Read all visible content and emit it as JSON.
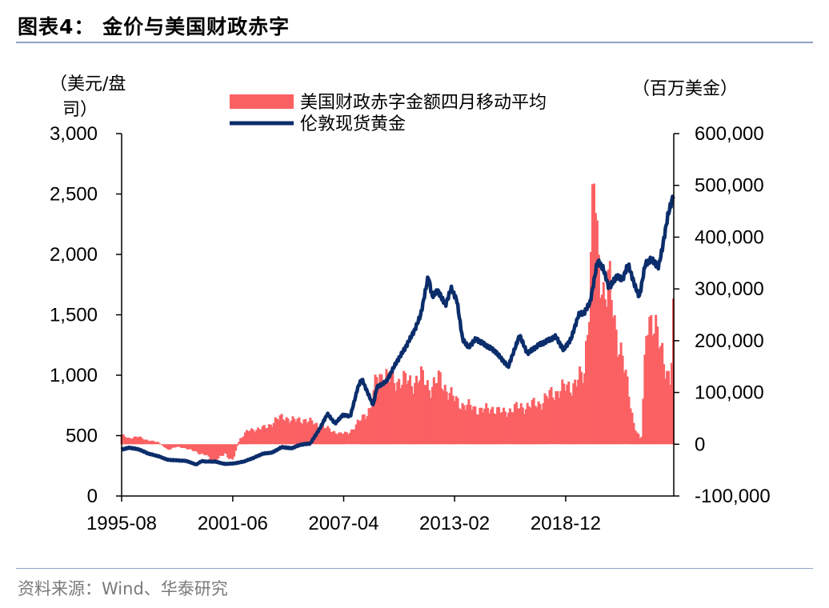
{
  "figure": {
    "title": "图表4：   金价与美国财政赤字",
    "source": "资料来源：Wind、华泰研究",
    "left_unit_line1": "（美元/盘",
    "left_unit_line2": "司）",
    "right_unit": "（百万美金）"
  },
  "colors": {
    "deficit": "#fb6063",
    "gold": "#0b2d6b",
    "axis": "#000000",
    "rule": "#8fa2c4"
  },
  "chart_data": {
    "type": "bar+line",
    "x_tick_labels": [
      "1995-08",
      "2001-06",
      "2007-04",
      "2013-02",
      "2018-12"
    ],
    "x_range": [
      1995.58,
      2024.6
    ],
    "x_tick_positions": [
      1995.58,
      2001.42,
      2007.25,
      2013.08,
      2018.92
    ],
    "left_axis": {
      "label": "美元/盘司",
      "range": [
        0,
        3000
      ],
      "ticks": [
        0,
        500,
        1000,
        1500,
        2000,
        2500,
        3000
      ],
      "tick_labels": [
        "0",
        "500",
        "1,000",
        "1,500",
        "2,000",
        "2,500",
        "3,000"
      ]
    },
    "right_axis": {
      "label": "百万美金",
      "range": [
        -100000,
        600000
      ],
      "ticks": [
        -100000,
        0,
        100000,
        200000,
        300000,
        400000,
        500000,
        600000
      ],
      "tick_labels": [
        "-100,000",
        "0",
        "100,000",
        "200,000",
        "300,000",
        "400,000",
        "500,000",
        "600,000"
      ]
    },
    "series": [
      {
        "name": "美国财政赤字金额四月移动平均",
        "type": "bar",
        "axis": "right",
        "points": [
          [
            1995.6,
            17000
          ],
          [
            1996.0,
            12000
          ],
          [
            1996.5,
            14000
          ],
          [
            1997.0,
            7000
          ],
          [
            1997.5,
            4000
          ],
          [
            1998.0,
            -10000
          ],
          [
            1998.5,
            -5000
          ],
          [
            1999.0,
            -8000
          ],
          [
            1999.5,
            -15000
          ],
          [
            2000.0,
            -20000
          ],
          [
            2000.3,
            -35000
          ],
          [
            2000.7,
            -25000
          ],
          [
            2001.0,
            -20000
          ],
          [
            2001.4,
            -30000
          ],
          [
            2001.8,
            10000
          ],
          [
            2002.2,
            25000
          ],
          [
            2002.7,
            30000
          ],
          [
            2003.2,
            32000
          ],
          [
            2003.7,
            48000
          ],
          [
            2004.2,
            52000
          ],
          [
            2004.7,
            45000
          ],
          [
            2005.2,
            48000
          ],
          [
            2005.7,
            40000
          ],
          [
            2006.2,
            33000
          ],
          [
            2006.7,
            25000
          ],
          [
            2007.1,
            20000
          ],
          [
            2007.5,
            22000
          ],
          [
            2007.9,
            35000
          ],
          [
            2008.3,
            55000
          ],
          [
            2008.7,
            70000
          ],
          [
            2009.0,
            130000
          ],
          [
            2009.4,
            135000
          ],
          [
            2009.8,
            120000
          ],
          [
            2010.3,
            125000
          ],
          [
            2010.8,
            118000
          ],
          [
            2011.3,
            130000
          ],
          [
            2011.8,
            110000
          ],
          [
            2012.3,
            125000
          ],
          [
            2012.7,
            105000
          ],
          [
            2013.1,
            85000
          ],
          [
            2013.6,
            75000
          ],
          [
            2014.1,
            70000
          ],
          [
            2014.6,
            65000
          ],
          [
            2015.1,
            70000
          ],
          [
            2015.6,
            60000
          ],
          [
            2016.1,
            68000
          ],
          [
            2016.6,
            72000
          ],
          [
            2017.1,
            75000
          ],
          [
            2017.6,
            80000
          ],
          [
            2018.1,
            95000
          ],
          [
            2018.6,
            105000
          ],
          [
            2019.1,
            110000
          ],
          [
            2019.6,
            125000
          ],
          [
            2019.9,
            130000
          ],
          [
            2020.2,
            310000
          ],
          [
            2020.4,
            530000
          ],
          [
            2020.6,
            350000
          ],
          [
            2020.9,
            300000
          ],
          [
            2021.2,
            320000
          ],
          [
            2021.5,
            220000
          ],
          [
            2021.9,
            180000
          ],
          [
            2022.2,
            100000
          ],
          [
            2022.5,
            40000
          ],
          [
            2022.9,
            5000
          ],
          [
            2023.2,
            240000
          ],
          [
            2023.5,
            250000
          ],
          [
            2023.9,
            180000
          ],
          [
            2024.2,
            150000
          ],
          [
            2024.45,
            125000
          ],
          [
            2024.6,
            260000
          ]
        ]
      },
      {
        "name": "伦敦现货黄金",
        "type": "line",
        "axis": "left",
        "points": [
          [
            1995.58,
            385
          ],
          [
            1996.0,
            400
          ],
          [
            1996.5,
            385
          ],
          [
            1997.0,
            350
          ],
          [
            1997.5,
            330
          ],
          [
            1998.0,
            300
          ],
          [
            1998.5,
            295
          ],
          [
            1999.0,
            290
          ],
          [
            1999.5,
            260
          ],
          [
            1999.8,
            290
          ],
          [
            2000.0,
            285
          ],
          [
            2000.5,
            285
          ],
          [
            2001.0,
            265
          ],
          [
            2001.5,
            270
          ],
          [
            2002.0,
            285
          ],
          [
            2002.5,
            315
          ],
          [
            2003.0,
            350
          ],
          [
            2003.5,
            360
          ],
          [
            2004.0,
            405
          ],
          [
            2004.5,
            395
          ],
          [
            2005.0,
            425
          ],
          [
            2005.5,
            435
          ],
          [
            2006.0,
            560
          ],
          [
            2006.4,
            680
          ],
          [
            2006.8,
            600
          ],
          [
            2007.2,
            670
          ],
          [
            2007.6,
            660
          ],
          [
            2008.0,
            900
          ],
          [
            2008.2,
            970
          ],
          [
            2008.8,
            750
          ],
          [
            2009.0,
            900
          ],
          [
            2009.5,
            950
          ],
          [
            2010.0,
            1100
          ],
          [
            2010.5,
            1230
          ],
          [
            2011.0,
            1380
          ],
          [
            2011.3,
            1500
          ],
          [
            2011.7,
            1820
          ],
          [
            2011.9,
            1650
          ],
          [
            2012.2,
            1700
          ],
          [
            2012.6,
            1580
          ],
          [
            2012.9,
            1720
          ],
          [
            2013.2,
            1620
          ],
          [
            2013.5,
            1300
          ],
          [
            2013.8,
            1230
          ],
          [
            2014.2,
            1300
          ],
          [
            2014.7,
            1250
          ],
          [
            2015.2,
            1200
          ],
          [
            2015.9,
            1070
          ],
          [
            2016.5,
            1330
          ],
          [
            2016.9,
            1180
          ],
          [
            2017.5,
            1250
          ],
          [
            2017.9,
            1280
          ],
          [
            2018.4,
            1320
          ],
          [
            2018.8,
            1210
          ],
          [
            2019.2,
            1300
          ],
          [
            2019.6,
            1500
          ],
          [
            2019.9,
            1520
          ],
          [
            2020.2,
            1600
          ],
          [
            2020.6,
            1950
          ],
          [
            2020.9,
            1880
          ],
          [
            2021.2,
            1720
          ],
          [
            2021.6,
            1820
          ],
          [
            2021.9,
            1790
          ],
          [
            2022.2,
            1920
          ],
          [
            2022.6,
            1720
          ],
          [
            2022.8,
            1650
          ],
          [
            2023.1,
            1920
          ],
          [
            2023.4,
            1960
          ],
          [
            2023.8,
            1900
          ],
          [
            2024.0,
            2050
          ],
          [
            2024.3,
            2330
          ],
          [
            2024.6,
            2500
          ]
        ]
      }
    ],
    "legend": {
      "position": "top-center",
      "entries": [
        "美国财政赤字金额四月移动平均",
        "伦敦现货黄金"
      ]
    }
  }
}
